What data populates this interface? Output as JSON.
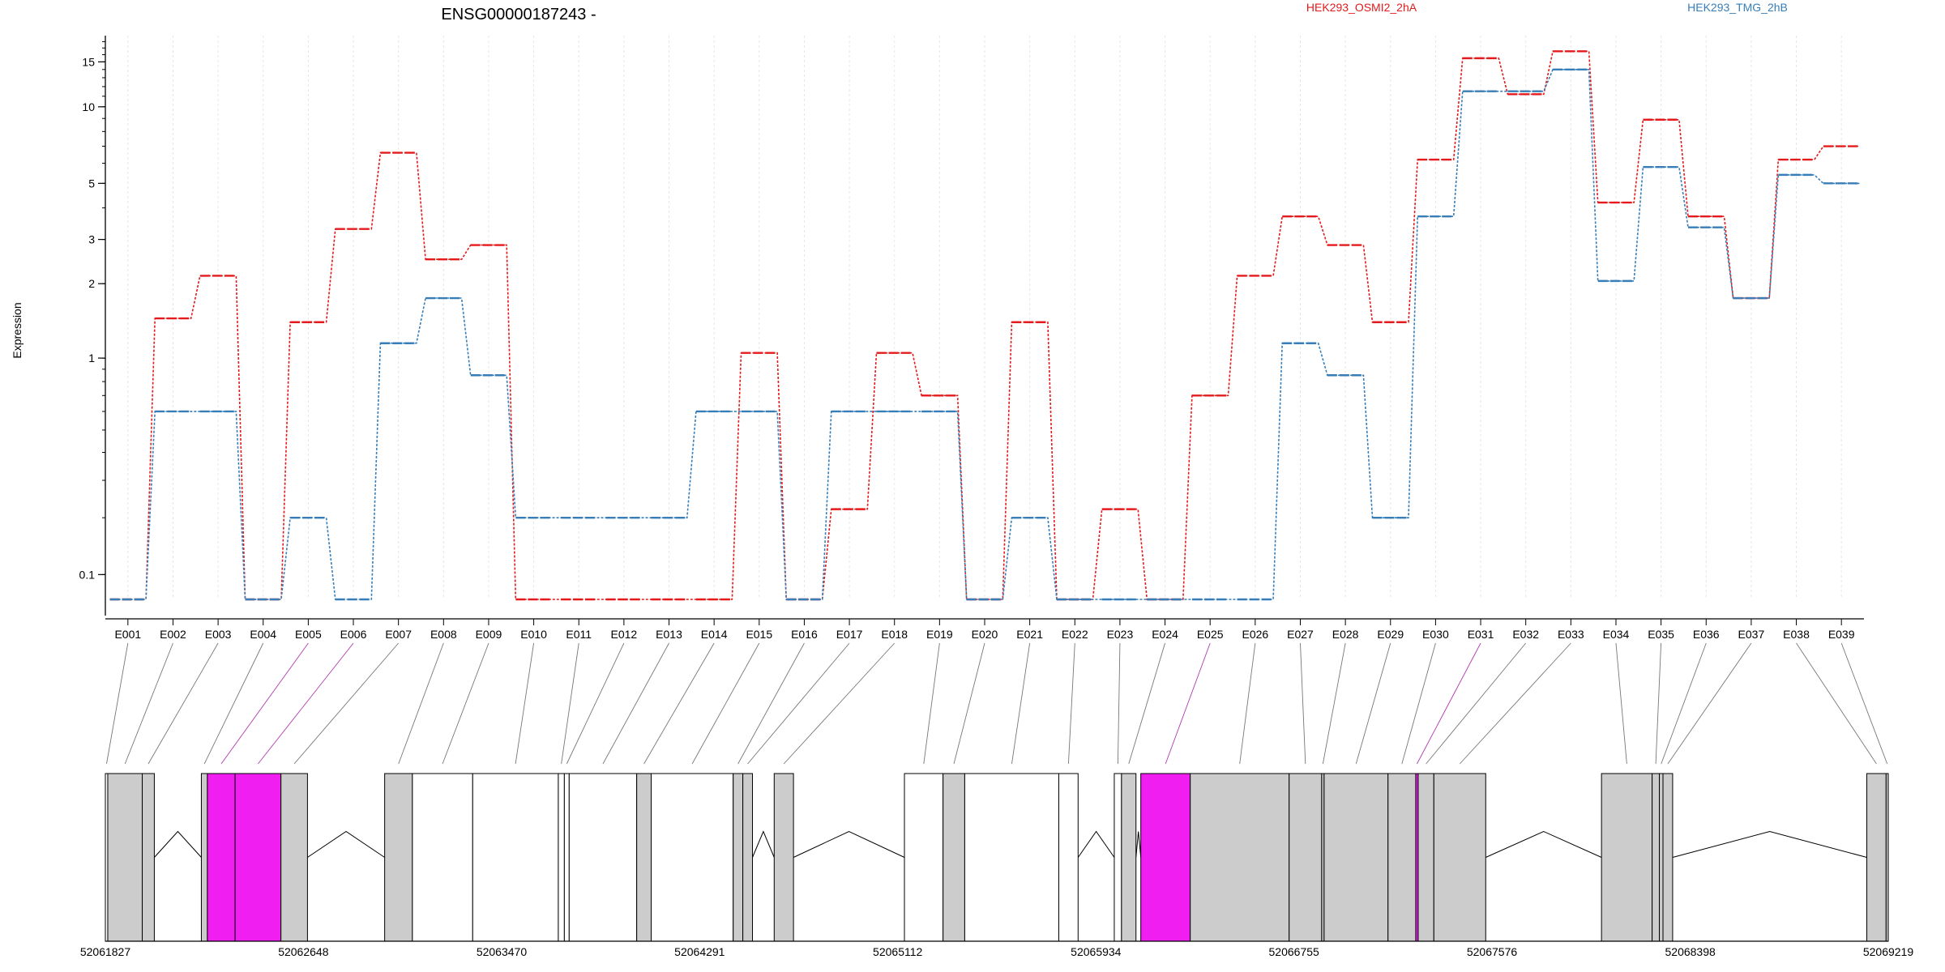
{
  "chart_data": {
    "type": "line",
    "title": "ENSG00000187243 -",
    "xlabel": "",
    "ylabel": "Expression",
    "y_scale": "log10(y + 0.05)",
    "y_ticks": [
      0.1,
      1,
      2,
      3,
      5,
      10,
      15
    ],
    "y_tick_labels": [
      "0.1",
      "1",
      "2",
      "3",
      "5",
      "10",
      "15"
    ],
    "ylim": [
      0.07,
      19
    ],
    "grid": "vertical dotted lines at each exon",
    "legend_position": "top (labels above plot)",
    "categories": [
      "E001",
      "E002",
      "E003",
      "E004",
      "E005",
      "E006",
      "E007",
      "E008",
      "E009",
      "E010",
      "E011",
      "E012",
      "E013",
      "E014",
      "E015",
      "E016",
      "E017",
      "E018",
      "E019",
      "E020",
      "E021",
      "E022",
      "E023",
      "E024",
      "E025",
      "E026",
      "E027",
      "E028",
      "E029",
      "E030",
      "E031",
      "E032",
      "E033",
      "E034",
      "E035",
      "E036",
      "E037",
      "E038",
      "E039"
    ],
    "series": [
      {
        "name": "HEK293_OSMI2_2hA",
        "color": "#e41a1c",
        "values": [
          0.07,
          1.45,
          2.15,
          0.07,
          1.4,
          3.3,
          6.6,
          2.5,
          2.85,
          0.07,
          0.07,
          0.07,
          0.07,
          0.07,
          1.05,
          0.07,
          0.22,
          1.05,
          0.7,
          0.07,
          1.4,
          0.07,
          0.22,
          0.07,
          0.7,
          2.15,
          3.7,
          2.85,
          1.4,
          6.2,
          15.5,
          11.2,
          16.5,
          4.2,
          8.9,
          3.7,
          1.75,
          6.2,
          7.0
        ]
      },
      {
        "name": "HEK293_TMG_2hB",
        "color": "#377eb8",
        "values": [
          0.07,
          0.6,
          0.6,
          0.07,
          0.2,
          0.07,
          1.15,
          1.75,
          0.85,
          0.2,
          0.2,
          0.2,
          0.2,
          0.6,
          0.6,
          0.07,
          0.6,
          0.6,
          0.6,
          0.07,
          0.2,
          0.07,
          0.07,
          0.07,
          0.07,
          0.07,
          1.15,
          0.85,
          0.2,
          3.7,
          11.5,
          11.5,
          14.0,
          2.05,
          5.8,
          3.35,
          1.75,
          5.4,
          5.0
        ]
      }
    ],
    "genomic_axis": {
      "tick_labels": [
        "52061827",
        "52062648",
        "52063470",
        "52064291",
        "52065112",
        "52065934",
        "52066755",
        "52067576",
        "52068398",
        "52069219"
      ],
      "start": 52061827,
      "end": 52069219
    },
    "exon_blocks": [
      {
        "start": 52061827,
        "end": 52061837,
        "fill": "white"
      },
      {
        "start": 52061837,
        "end": 52061980,
        "fill": "grey"
      },
      {
        "start": 52061980,
        "end": 52062030,
        "fill": "grey"
      },
      {
        "start": 52062225,
        "end": 52062250,
        "fill": "grey"
      },
      {
        "start": 52062250,
        "end": 52062365,
        "fill": "magenta"
      },
      {
        "start": 52062365,
        "end": 52062555,
        "fill": "magenta"
      },
      {
        "start": 52062555,
        "end": 52062665,
        "fill": "grey"
      },
      {
        "start": 52062985,
        "end": 52063100,
        "fill": "grey"
      },
      {
        "start": 52063100,
        "end": 52063350,
        "fill": "white"
      },
      {
        "start": 52063350,
        "end": 52063705,
        "fill": "white"
      },
      {
        "start": 52063705,
        "end": 52063730,
        "fill": "white"
      },
      {
        "start": 52063730,
        "end": 52063750,
        "fill": "white"
      },
      {
        "start": 52063750,
        "end": 52064030,
        "fill": "white"
      },
      {
        "start": 52064030,
        "end": 52064090,
        "fill": "grey"
      },
      {
        "start": 52064090,
        "end": 52064430,
        "fill": "white"
      },
      {
        "start": 52064430,
        "end": 52064470,
        "fill": "grey"
      },
      {
        "start": 52064470,
        "end": 52064510,
        "fill": "grey"
      },
      {
        "start": 52064600,
        "end": 52064680,
        "fill": "grey"
      },
      {
        "start": 52065140,
        "end": 52065300,
        "fill": "white"
      },
      {
        "start": 52065300,
        "end": 52065390,
        "fill": "grey"
      },
      {
        "start": 52065390,
        "end": 52065780,
        "fill": "white"
      },
      {
        "start": 52065780,
        "end": 52065860,
        "fill": "white"
      },
      {
        "start": 52066010,
        "end": 52066040,
        "fill": "white"
      },
      {
        "start": 52066040,
        "end": 52066100,
        "fill": "grey"
      },
      {
        "start": 52066120,
        "end": 52066325,
        "fill": "magenta"
      },
      {
        "start": 52066325,
        "end": 52066735,
        "fill": "grey"
      },
      {
        "start": 52066735,
        "end": 52066870,
        "fill": "grey"
      },
      {
        "start": 52066870,
        "end": 52066880,
        "fill": "grey"
      },
      {
        "start": 52066880,
        "end": 52067145,
        "fill": "grey"
      },
      {
        "start": 52067145,
        "end": 52067260,
        "fill": "grey"
      },
      {
        "start": 52067260,
        "end": 52067270,
        "fill": "magenta"
      },
      {
        "start": 52067270,
        "end": 52067335,
        "fill": "grey"
      },
      {
        "start": 52067335,
        "end": 52067550,
        "fill": "grey"
      },
      {
        "start": 52068030,
        "end": 52068240,
        "fill": "grey"
      },
      {
        "start": 52068240,
        "end": 52068270,
        "fill": "grey"
      },
      {
        "start": 52068270,
        "end": 52068285,
        "fill": "grey"
      },
      {
        "start": 52068285,
        "end": 52068325,
        "fill": "grey"
      },
      {
        "start": 52069130,
        "end": 52069210,
        "fill": "grey"
      },
      {
        "start": 52069210,
        "end": 52069219,
        "fill": "grey"
      }
    ],
    "introns": [
      {
        "start": 52062030,
        "end": 52062225
      },
      {
        "start": 52062665,
        "end": 52062985
      },
      {
        "start": 52064510,
        "end": 52064600
      },
      {
        "start": 52064680,
        "end": 52065140
      },
      {
        "start": 52065860,
        "end": 52066010
      },
      {
        "start": 52066100,
        "end": 52066120
      },
      {
        "start": 52067550,
        "end": 52068030
      },
      {
        "start": 52068325,
        "end": 52069130
      }
    ]
  }
}
